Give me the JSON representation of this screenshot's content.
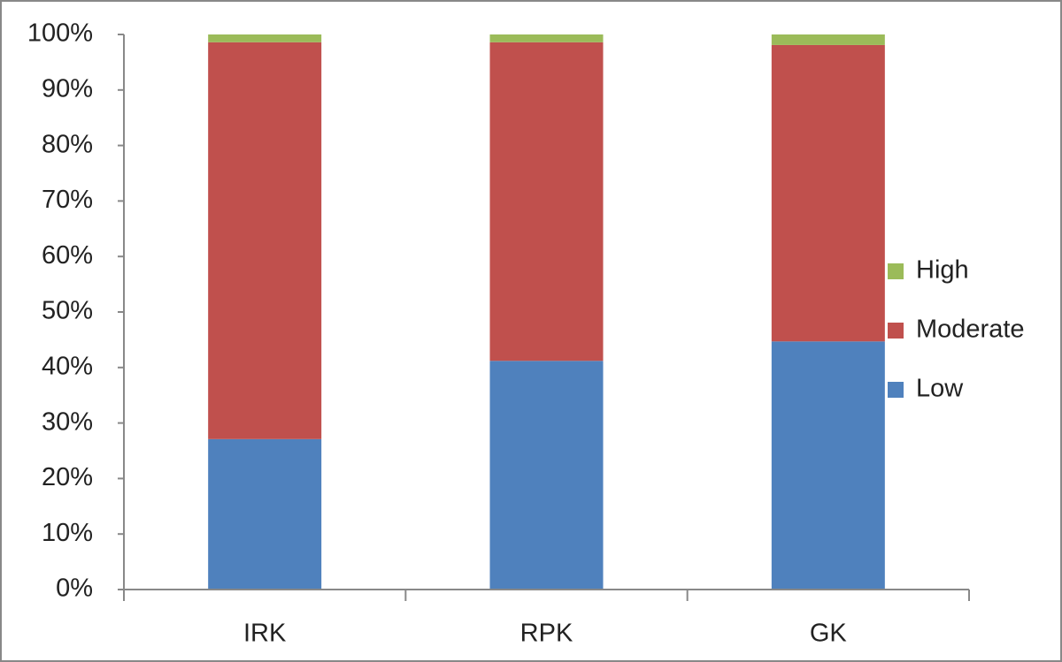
{
  "chart_data": {
    "type": "stacked-bar",
    "categories": [
      "IRK",
      "RPK",
      "GK"
    ],
    "series": [
      {
        "name": "Low",
        "color": "#4f81bd",
        "values": [
          27.1,
          41.2,
          44.7
        ]
      },
      {
        "name": "Moderate",
        "color": "#c0504d",
        "values": [
          71.5,
          57.4,
          53.4
        ]
      },
      {
        "name": "High",
        "color": "#9bbb59",
        "values": [
          1.4,
          1.4,
          1.9
        ]
      }
    ],
    "ylim": [
      0,
      100
    ],
    "yticks": [
      {
        "value": 0,
        "label": "0%"
      },
      {
        "value": 10,
        "label": "10%"
      },
      {
        "value": 20,
        "label": "20%"
      },
      {
        "value": 30,
        "label": "30%"
      },
      {
        "value": 40,
        "label": "40%"
      },
      {
        "value": 50,
        "label": "50%"
      },
      {
        "value": 60,
        "label": "60%"
      },
      {
        "value": 70,
        "label": "70%"
      },
      {
        "value": 80,
        "label": "80%"
      },
      {
        "value": 90,
        "label": "90%"
      },
      {
        "value": 100,
        "label": "100%"
      }
    ],
    "grid": false,
    "legend": "right"
  }
}
